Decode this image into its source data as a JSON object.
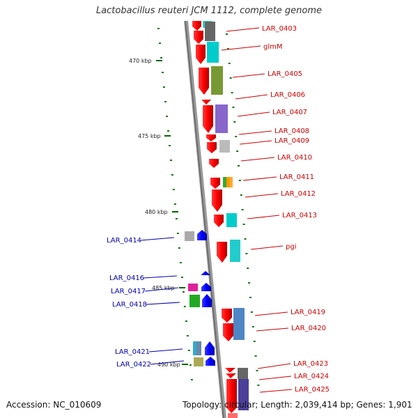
{
  "title": "Lactobacillus reuteri JCM 1112, complete genome",
  "footer": {
    "accession": "Accession: NC_010609",
    "topology": "Topology: circular; Length: 2,039,414 bp; Genes: 1,901"
  },
  "scale_labels": [
    "470 kbp",
    "475 kbp",
    "480 kbp",
    "485 kbp",
    "490 kbp"
  ],
  "colors": {
    "forward_label": "#cc0000",
    "reverse_label": "#0000aa",
    "forward_cds": "#ff0000",
    "reverse_cds": "#0000ff",
    "gc_ticks": "#006600",
    "backbone": "#888888"
  },
  "forward_genes": [
    "LAR_0403",
    "glmM",
    "LAR_0405",
    "LAR_0406",
    "LAR_0407",
    "LAR_0408",
    "LAR_0409",
    "LAR_0410",
    "LAR_0411",
    "LAR_0412",
    "LAR_0413",
    "pgi",
    "LAR_0419",
    "LAR_0420",
    "LAR_0423",
    "LAR_0424",
    "LAR_0425"
  ],
  "reverse_genes": [
    "LAR_0414",
    "LAR_0416",
    "LAR_0417",
    "LAR_0418",
    "LAR_0421",
    "LAR_0422"
  ]
}
